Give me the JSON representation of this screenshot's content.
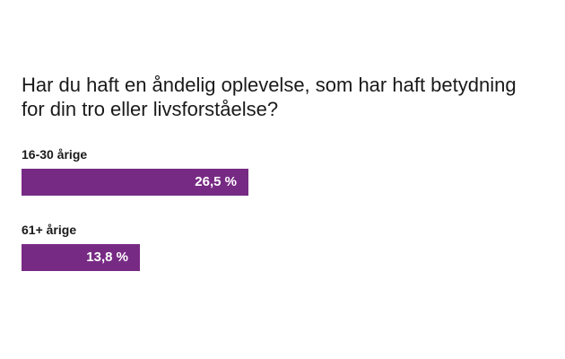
{
  "chart_data": {
    "type": "bar",
    "orientation": "horizontal",
    "title": "Har du haft en åndelig oplevelse, som har haft betydning for din tro eller livsforståelse?",
    "categories": [
      "16-30 årige",
      "61+ årige"
    ],
    "values": [
      26.5,
      13.8
    ],
    "value_labels": [
      "26,5 %",
      "13,8 %"
    ],
    "unit": "%",
    "xlim": [
      0,
      60
    ],
    "bar_color": "#772a84",
    "grid": false,
    "legend": "none"
  }
}
